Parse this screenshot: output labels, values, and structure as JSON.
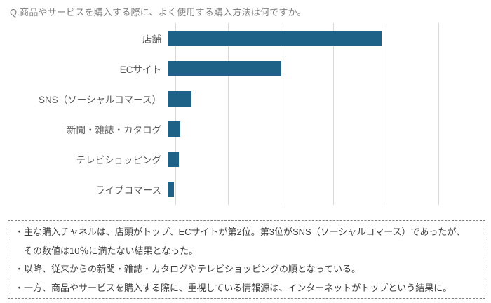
{
  "title": {
    "text": "Q.商品やサービスを購入する際に、よく使用する購入方法は何ですか。",
    "color": "#7f7f7f"
  },
  "chart_data": {
    "type": "bar",
    "orientation": "horizontal",
    "title": "Q.商品やサービスを購入する際に、よく使用する購入方法は何ですか。",
    "categories": [
      "店舗",
      "ECサイト",
      "SNS（ソーシャルコマース）",
      "新聞・雑誌・カタログ",
      "テレビショッピング",
      "ライブコマース"
    ],
    "values": [
      40.5,
      21.5,
      4.4,
      2.2,
      2.0,
      1.0
    ],
    "unit": "%",
    "xlabel": "",
    "ylabel": "",
    "xlim": [
      0,
      50
    ],
    "gridline_interval": 10,
    "grid": true,
    "tick_labels_visible": false,
    "legend": "none",
    "bar_color": "#1e6287",
    "gridline_color": "#d9d9d9",
    "label_color": "#595959"
  },
  "summary_box": {
    "border_color": "#808080",
    "text_color": "#3f3f3f",
    "lines": [
      "・主な購入チャネルは、店頭がトップ、ECサイトが第2位。第3位がSNS（ソーシャルコマース）であったが、",
      "　その数値は10％に満たない結果となった。",
      "・以降、従来からの新聞・雑誌・カタログやテレビショッピングの順となっている。",
      "・一方、商品やサービスを購入する際に、重視している情報源は、インターネットがトップという結果に。"
    ]
  }
}
